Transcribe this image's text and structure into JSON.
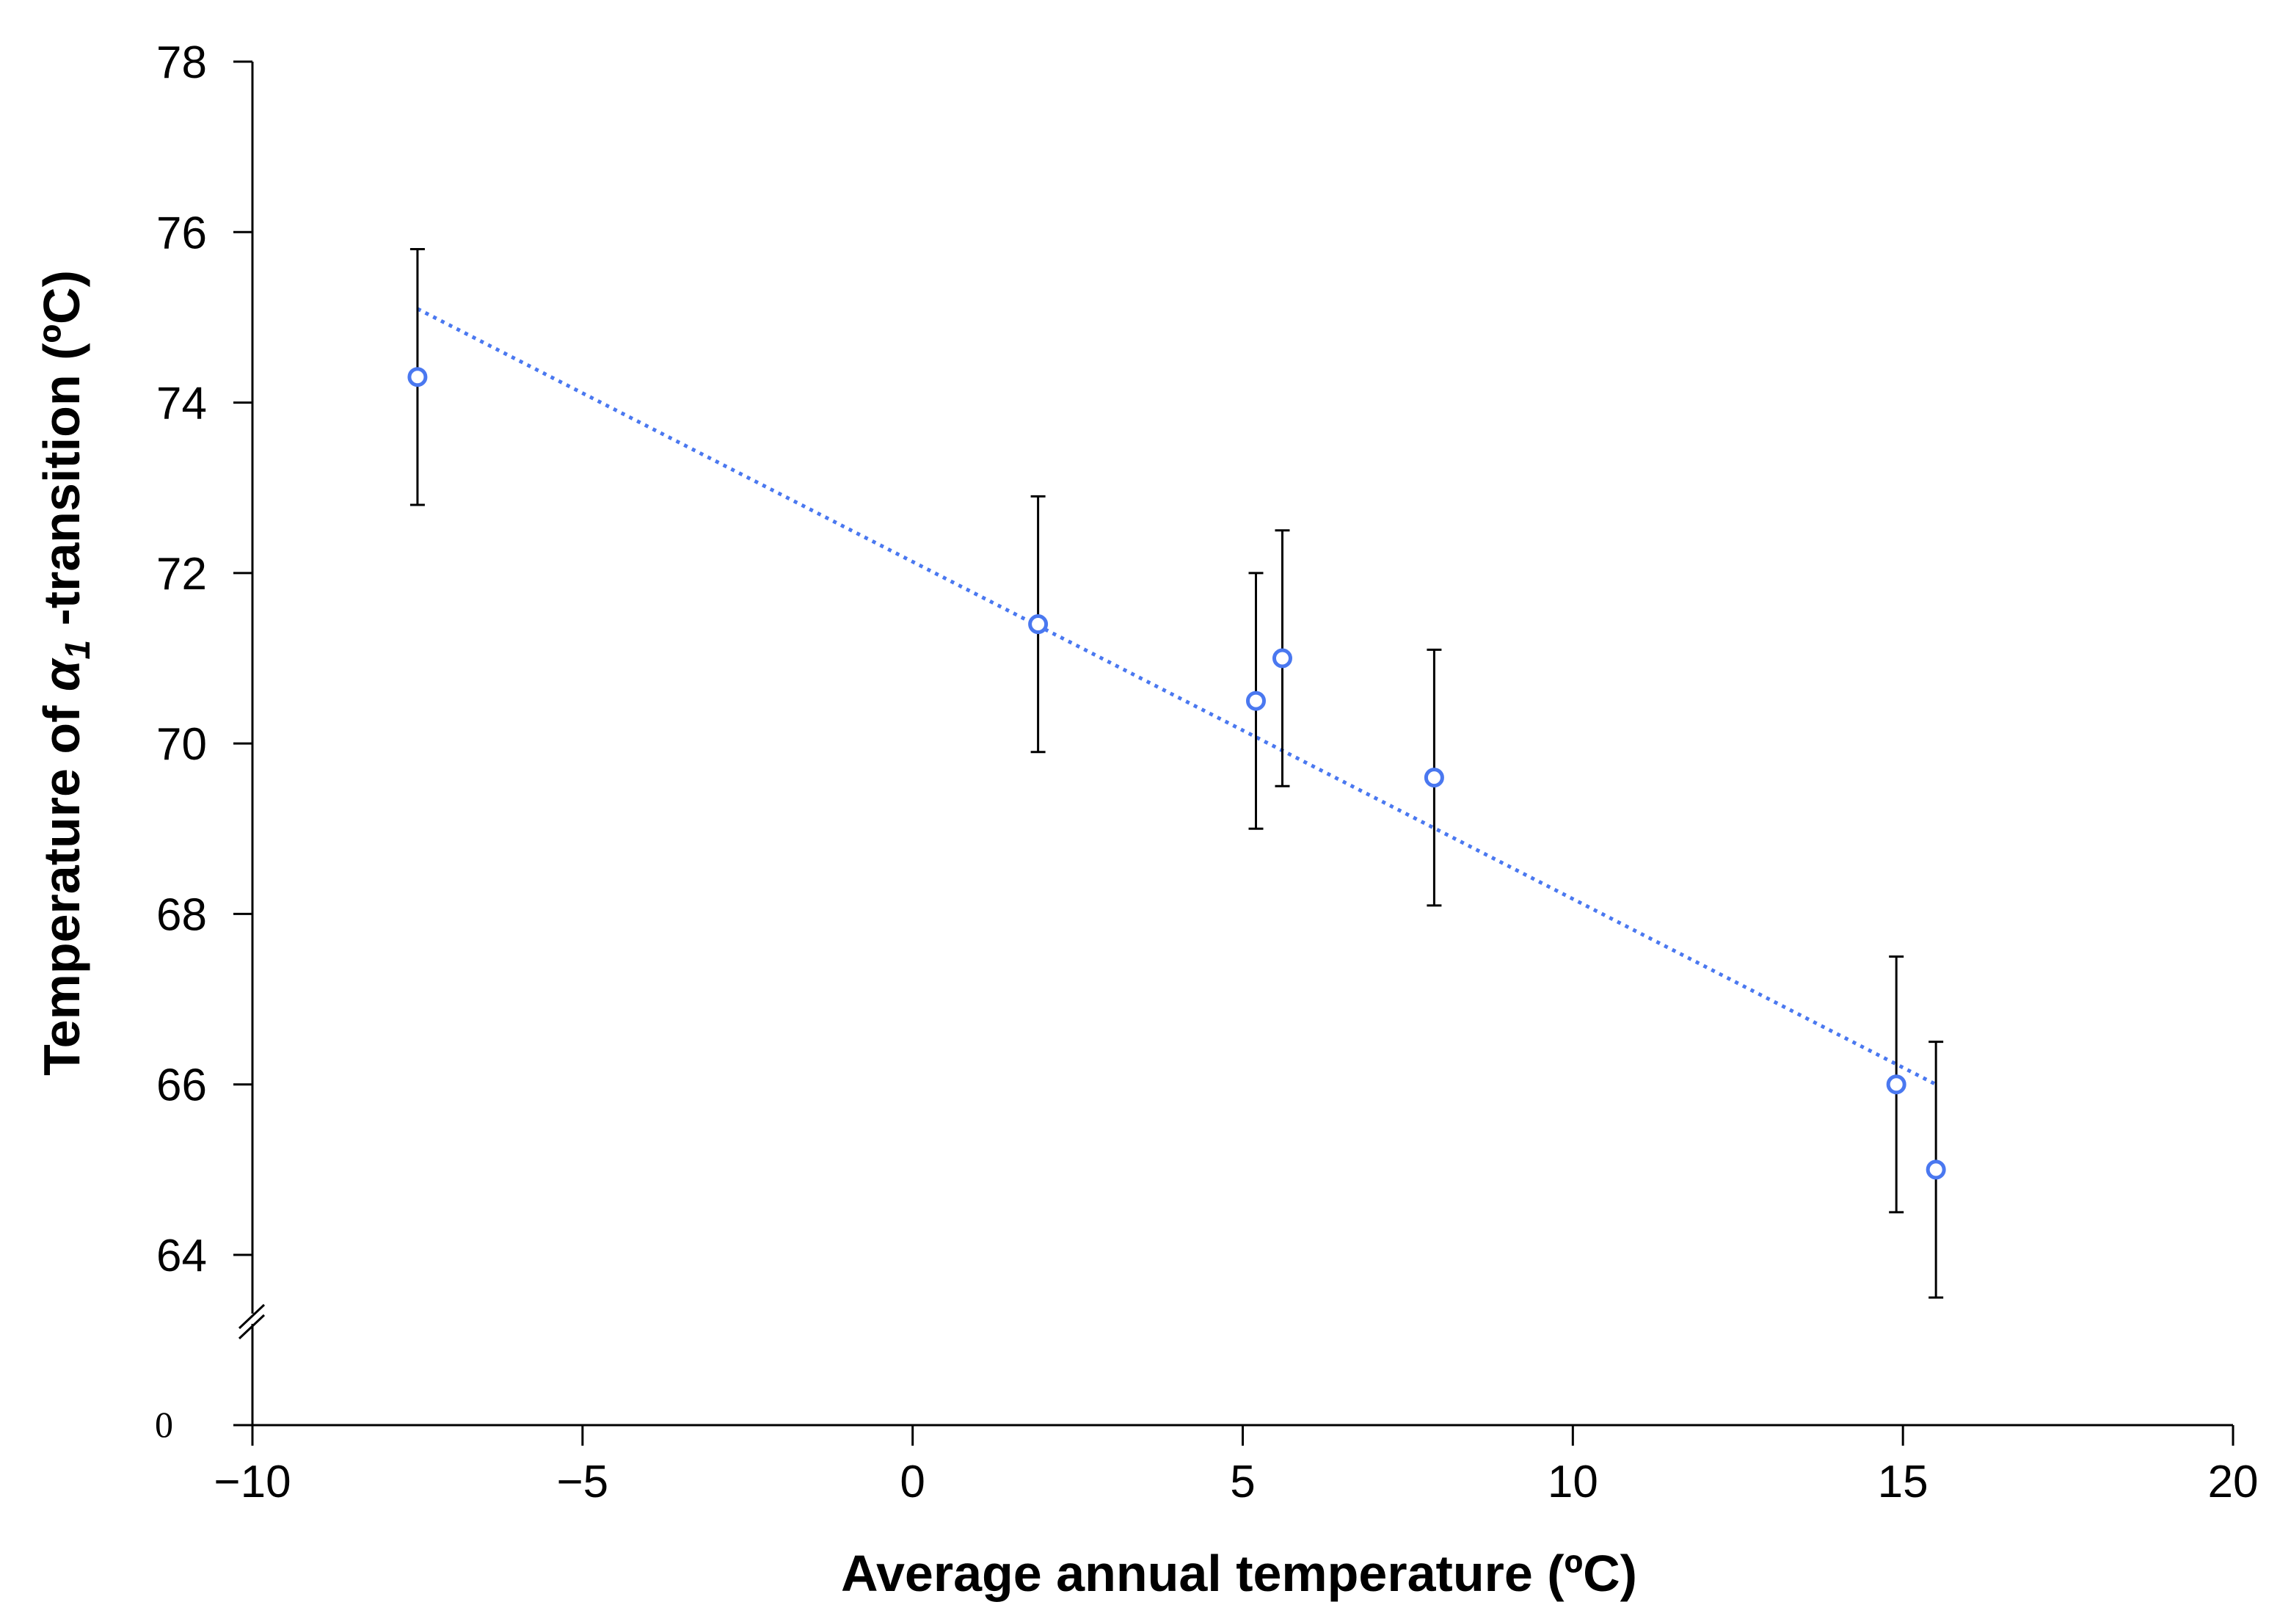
{
  "chart_data": {
    "type": "scatter",
    "xlabel": "Average annual temperature (ºC)",
    "ylabel": {
      "prefix": "Temperature of ",
      "symbol": "α",
      "subscript": "1",
      "suffix": " -transition (ºC)"
    },
    "xlim": [
      -10,
      20
    ],
    "ylim": [
      64,
      78
    ],
    "x_ticks": [
      -10,
      -5,
      0,
      5,
      10,
      15,
      20
    ],
    "x_tick_labels": [
      "−10",
      "−5",
      "0",
      "5",
      "10",
      "15",
      "20"
    ],
    "y_ticks": [
      64,
      66,
      68,
      70,
      72,
      74,
      76,
      78
    ],
    "y_tick_labels": [
      "64",
      "66",
      "68",
      "70",
      "72",
      "74",
      "76",
      "78"
    ],
    "y_axis_break": true,
    "y_break_label": "0",
    "grid": false,
    "legend": "none",
    "series": [
      {
        "points": [
          {
            "x": -7.5,
            "y": 74.3,
            "y_err_low": 72.8,
            "y_err_high": 75.8
          },
          {
            "x": 1.9,
            "y": 71.4,
            "y_err_low": 69.9,
            "y_err_high": 72.9
          },
          {
            "x": 5.2,
            "y": 70.5,
            "y_err_low": 69.0,
            "y_err_high": 72.0
          },
          {
            "x": 5.6,
            "y": 71.0,
            "y_err_low": 69.5,
            "y_err_high": 72.5
          },
          {
            "x": 7.9,
            "y": 69.6,
            "y_err_low": 68.1,
            "y_err_high": 71.1
          },
          {
            "x": 14.9,
            "y": 66.0,
            "y_err_low": 64.5,
            "y_err_high": 67.5
          },
          {
            "x": 15.5,
            "y": 65.0,
            "y_err_low": 63.5,
            "y_err_high": 66.5
          }
        ],
        "color": "#4a78f0"
      }
    ],
    "trendline": {
      "style": "dotted",
      "color": "#4a78f0",
      "x": [
        -7.5,
        15.5
      ],
      "y": [
        75.1,
        66.0
      ]
    }
  }
}
